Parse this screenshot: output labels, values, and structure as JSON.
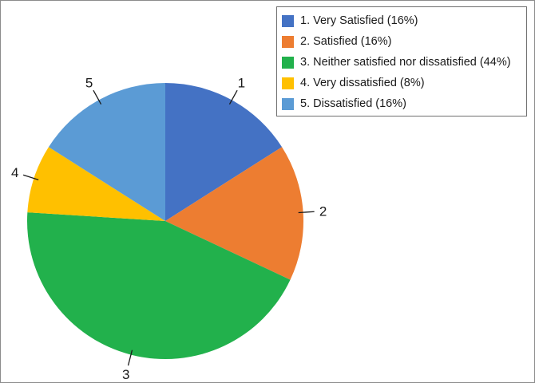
{
  "chart_data": {
    "type": "pie",
    "title": "",
    "start_angle_deg": 0,
    "direction": "clockwise",
    "legend_position": "top-right",
    "slices": [
      {
        "label": "1",
        "legend": "1. Very Satisfied (16%)",
        "value": 16,
        "color": "#4472C4"
      },
      {
        "label": "2",
        "legend": "2. Satisfied (16%)",
        "value": 16,
        "color": "#ED7D31"
      },
      {
        "label": "3",
        "legend": "3. Neither satisfied nor dissatisfied (44%)",
        "value": 44,
        "color": "#22B14C"
      },
      {
        "label": "4",
        "legend": "4. Very dissatisfied (8%)",
        "value": 8,
        "color": "#FFC000"
      },
      {
        "label": "5",
        "legend": "5. Dissatisfied (16%)",
        "value": 16,
        "color": "#5B9BD5"
      }
    ]
  }
}
